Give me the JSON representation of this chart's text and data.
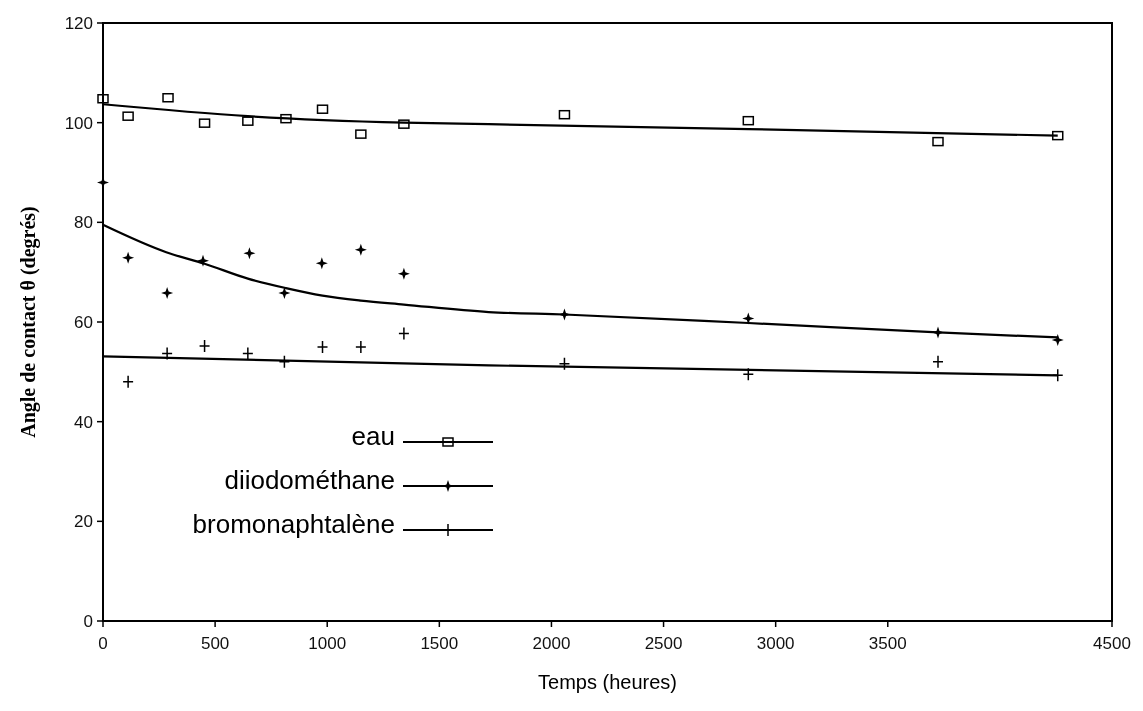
{
  "chart_data": {
    "type": "scatter",
    "xlabel": "Temps (heures)",
    "ylabel": "Angle de contact θ (degrés)",
    "xlim": [
      0,
      4500
    ],
    "ylim": [
      0,
      120
    ],
    "xticks": [
      0,
      500,
      1000,
      1500,
      2000,
      2500,
      3000,
      3500,
      4500
    ],
    "yticks": [
      0,
      20,
      40,
      60,
      80,
      100,
      120
    ],
    "grid": false,
    "legend": "bottom left",
    "series": [
      {
        "name": "eau",
        "color": "#000000",
        "marker": "square",
        "x": [
          0,
          112,
          290,
          453,
          646,
          816,
          979,
          1150,
          1342,
          2058,
          2878,
          3724,
          4258
        ],
        "values": [
          104.8,
          101.3,
          105,
          99.9,
          100.3,
          100.8,
          102.7,
          97.7,
          99.7,
          101.6,
          100.4,
          96.2,
          97.4
        ]
      },
      {
        "name": "diiodométhane",
        "color": "#000000",
        "marker": "star",
        "x": [
          0,
          112,
          286,
          446,
          653,
          809,
          976,
          1150,
          1342,
          2058,
          2878,
          3724,
          4258
        ],
        "values": [
          88,
          72.9,
          65.8,
          72.3,
          73.8,
          65.8,
          71.8,
          74.5,
          69.7,
          61.5,
          60.7,
          57.9,
          56.4
        ]
      },
      {
        "name": "bromonaphtalène",
        "color": "#000000",
        "marker": "cross",
        "x": [
          112,
          286,
          453,
          646,
          809,
          979,
          1150,
          1342,
          2058,
          2878,
          3724,
          4258
        ],
        "values": [
          48,
          53.7,
          55.2,
          53.7,
          52,
          55,
          55,
          57.7,
          51.6,
          49.5,
          52,
          49.3
        ]
      },
      {
        "type": "line",
        "color": "#000000",
        "marker": "none",
        "x": [
          0,
          646,
          1342,
          1720,
          2878,
          4258
        ],
        "values": [
          103.7,
          101.3,
          100,
          99.7,
          98.7,
          97.4
        ]
      },
      {
        "type": "line",
        "color": "#000000",
        "marker": "none",
        "x": [
          0,
          282,
          453,
          646,
          816,
          979,
          1150,
          1342,
          1720,
          2058,
          2878,
          3724,
          4258
        ],
        "values": [
          79.5,
          74,
          71.7,
          68.7,
          66.8,
          65.3,
          64.3,
          63.5,
          62,
          61.5,
          59.8,
          57.9,
          56.9
        ]
      },
      {
        "type": "line",
        "color": "#000000",
        "marker": "none",
        "x": [
          0,
          1720,
          4258
        ],
        "values": [
          53.1,
          51.3,
          49.3
        ]
      }
    ]
  }
}
